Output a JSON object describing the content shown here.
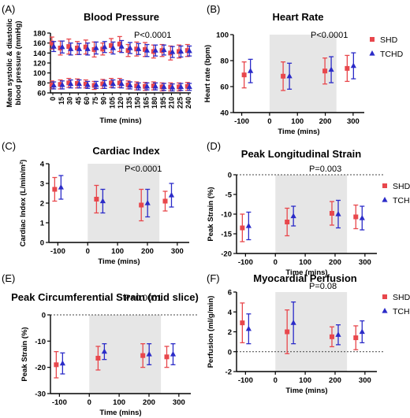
{
  "colors": {
    "shd": "#e8474c",
    "tchd": "#2b2bc8",
    "shade": "#e6e6e6"
  },
  "legend": {
    "shd": "SHD",
    "tchd": "TCHD"
  },
  "chart_data": [
    {
      "id": "A",
      "panel_label": "(A)",
      "type": "scatter",
      "title": "Blood Pressure",
      "xlabel": "Time (mins)",
      "ylabel_lines": [
        "Mean systolic & diastolic",
        "blood pressure (mmHg)"
      ],
      "ylim": [
        60,
        180
      ],
      "yticks": [
        60,
        80,
        100,
        120,
        140,
        160,
        180
      ],
      "xcategorical": true,
      "categories": [
        "0",
        "15",
        "30",
        "45",
        "60",
        "75",
        "90",
        "105",
        "120",
        "135",
        "150",
        "165",
        "180",
        "195",
        "210",
        "225",
        "240"
      ],
      "pvalue": "P<0.0001",
      "series": [
        {
          "group": "SHD",
          "values": [
            160,
            150,
            153,
            150,
            152,
            147,
            148,
            155,
            158,
            145,
            148,
            147,
            143,
            145,
            140,
            143,
            145
          ],
          "err": [
            12,
            14,
            15,
            13,
            14,
            15,
            12,
            14,
            15,
            12,
            14,
            14,
            13,
            12,
            14,
            13,
            12
          ]
        },
        {
          "group": "TCHD",
          "values": [
            153,
            152,
            148,
            148,
            148,
            150,
            152,
            150,
            153,
            150,
            148,
            145,
            145,
            146,
            142,
            143,
            144
          ],
          "err": [
            10,
            12,
            12,
            11,
            12,
            12,
            11,
            12,
            12,
            11,
            11,
            12,
            11,
            10,
            11,
            11,
            10
          ]
        },
        {
          "group": "SHD",
          "values": [
            76,
            77,
            80,
            79,
            78,
            75,
            78,
            80,
            80,
            76,
            74,
            73,
            74,
            72,
            72,
            72,
            73
          ],
          "err": [
            8,
            9,
            9,
            9,
            8,
            8,
            9,
            9,
            9,
            8,
            8,
            8,
            8,
            8,
            8,
            8,
            8
          ]
        },
        {
          "group": "TCHD",
          "values": [
            75,
            76,
            78,
            78,
            76,
            76,
            77,
            78,
            78,
            75,
            73,
            73,
            73,
            72,
            71,
            72,
            72
          ],
          "err": [
            7,
            8,
            8,
            8,
            7,
            7,
            8,
            8,
            8,
            7,
            7,
            7,
            7,
            7,
            7,
            7,
            7
          ]
        }
      ]
    },
    {
      "id": "B",
      "panel_label": "(B)",
      "type": "scatter",
      "title": "Heart Rate",
      "xlabel": "Time (mins)",
      "ylabel": "Heart rate (bpm)",
      "ylim": [
        40,
        100
      ],
      "yticks": [
        40,
        60,
        80,
        100
      ],
      "xlim": [
        -130,
        340
      ],
      "xticks": [
        -100,
        0,
        100,
        200,
        300
      ],
      "shade": [
        0,
        240
      ],
      "pvalue": "P<0.0001",
      "legend": [
        "SHD",
        "TCHD"
      ],
      "points": [
        {
          "x": -80,
          "shd": [
            69,
            10
          ],
          "tchd": [
            72,
            9
          ]
        },
        {
          "x": 60,
          "shd": [
            68,
            11
          ],
          "tchd": [
            68,
            10
          ]
        },
        {
          "x": 210,
          "shd": [
            72,
            10
          ],
          "tchd": [
            73,
            10
          ]
        },
        {
          "x": 290,
          "shd": [
            74,
            10
          ],
          "tchd": [
            76,
            10
          ]
        }
      ]
    },
    {
      "id": "C",
      "panel_label": "(C)",
      "type": "scatter",
      "title": "Cardiac Index",
      "xlabel": "Time (mins)",
      "ylabel": "Cardiac Index (L/min/m²)",
      "ylim": [
        0,
        4
      ],
      "yticks": [
        0,
        1,
        2,
        3,
        4
      ],
      "xlim": [
        -130,
        340
      ],
      "xticks": [
        -100,
        0,
        100,
        200,
        300
      ],
      "shade": [
        0,
        240
      ],
      "pvalue": "P<0.0001",
      "points": [
        {
          "x": -100,
          "shd": [
            2.7,
            0.6
          ],
          "tchd": [
            2.8,
            0.6
          ]
        },
        {
          "x": 40,
          "shd": [
            2.2,
            0.7
          ],
          "tchd": [
            2.1,
            0.6
          ]
        },
        {
          "x": 190,
          "shd": [
            1.9,
            0.8
          ],
          "tchd": [
            2.0,
            0.7
          ]
        },
        {
          "x": 270,
          "shd": [
            2.1,
            0.5
          ],
          "tchd": [
            2.4,
            0.6
          ]
        }
      ]
    },
    {
      "id": "D",
      "panel_label": "(D)",
      "type": "scatter",
      "title": "Peak Longitudinal Strain",
      "xlabel": "Time (mins)",
      "ylabel": "Peak Strain (%)",
      "ylim": [
        -20,
        0
      ],
      "yticks": [
        -20,
        -15,
        -10,
        -5,
        0
      ],
      "zero_dotted": true,
      "xlim": [
        -130,
        340
      ],
      "xticks": [
        -100,
        0,
        100,
        200,
        300
      ],
      "shade": [
        0,
        240
      ],
      "pvalue": "P=0.003",
      "legend": [
        "SHD",
        "TCHD"
      ],
      "points": [
        {
          "x": -100,
          "shd": [
            -13.5,
            3.5
          ],
          "tchd": [
            -13,
            3.5
          ]
        },
        {
          "x": 50,
          "shd": [
            -12,
            3.5
          ],
          "tchd": [
            -10.5,
            2.5
          ]
        },
        {
          "x": 200,
          "shd": [
            -9.8,
            3
          ],
          "tchd": [
            -10,
            3.5
          ]
        },
        {
          "x": 280,
          "shd": [
            -10.7,
            3
          ],
          "tchd": [
            -11,
            3
          ]
        }
      ]
    },
    {
      "id": "E",
      "panel_label": "(E)",
      "type": "scatter",
      "title": "Peak Circumferential Strain (mid slice)",
      "xlabel": "Time (mins)",
      "ylabel": "Peak Strain (%)",
      "ylim": [
        -30,
        0
      ],
      "yticks": [
        -30,
        -20,
        -10,
        0
      ],
      "zero_dotted": true,
      "xlim": [
        -130,
        340
      ],
      "xticks": [
        -100,
        0,
        100,
        200,
        300
      ],
      "shade": [
        0,
        240
      ],
      "pvalue": "P<0.0001",
      "points": [
        {
          "x": -100,
          "shd": [
            -19,
            5
          ],
          "tchd": [
            -18.5,
            4
          ]
        },
        {
          "x": 40,
          "shd": [
            -16.5,
            4.5
          ],
          "tchd": [
            -14,
            3
          ]
        },
        {
          "x": 190,
          "shd": [
            -15.5,
            4.5
          ],
          "tchd": [
            -15,
            4
          ]
        },
        {
          "x": 270,
          "shd": [
            -16,
            4
          ],
          "tchd": [
            -15,
            4
          ]
        }
      ]
    },
    {
      "id": "F",
      "panel_label": "(F)",
      "type": "scatter",
      "title": "Myocardial Perfusion",
      "xlabel": "Time (mins)",
      "ylabel": "Perfusion (ml/g/min)",
      "ylim": [
        -2,
        6
      ],
      "yticks": [
        -2,
        0,
        2,
        4,
        6
      ],
      "zero_dotted": true,
      "xlim": [
        -130,
        340
      ],
      "xticks": [
        -100,
        0,
        100,
        200,
        300
      ],
      "shade": [
        0,
        240
      ],
      "pvalue": "P=0.08",
      "legend": [
        "SHD",
        "TCHD"
      ],
      "points": [
        {
          "x": -100,
          "shd": [
            2.9,
            2.0
          ],
          "tchd": [
            2.3,
            1.5
          ]
        },
        {
          "x": 50,
          "shd": [
            2.0,
            2.2
          ],
          "tchd": [
            2.9,
            2.1
          ]
        },
        {
          "x": 200,
          "shd": [
            1.5,
            1.0
          ],
          "tchd": [
            1.7,
            1.0
          ]
        },
        {
          "x": 280,
          "shd": [
            1.4,
            1.2
          ],
          "tchd": [
            2.0,
            1.1
          ]
        }
      ]
    }
  ]
}
